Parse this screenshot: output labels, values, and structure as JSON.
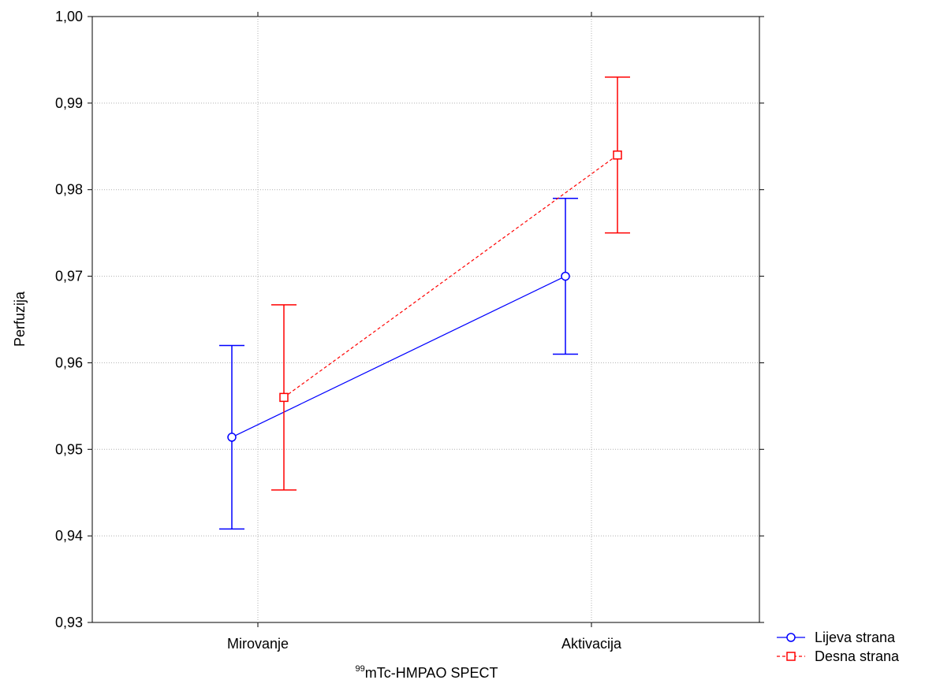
{
  "chart_data": {
    "type": "line",
    "xlabel_sup": "99",
    "xlabel_main": "mTc-HMPAO SPECT",
    "ylabel": "Perfuzija",
    "categories": [
      "Mirovanje",
      "Aktivacija"
    ],
    "ylim": [
      0.93,
      1.0
    ],
    "yticks": [
      "0,93",
      "0,94",
      "0,95",
      "0,96",
      "0,97",
      "0,98",
      "0,99",
      "1,00"
    ],
    "grid": true,
    "legend_position": "bottom-right, outside plot",
    "series": [
      {
        "name": "Lijeva strana",
        "color": "#0000ff",
        "line_style": "solid",
        "marker": "circle",
        "values": [
          0.9514,
          0.97
        ],
        "err_low": [
          0.9408,
          0.961
        ],
        "err_high": [
          0.962,
          0.979
        ]
      },
      {
        "name": "Desna strana",
        "color": "#ff0000",
        "line_style": "dashed",
        "marker": "square",
        "values": [
          0.956,
          0.984
        ],
        "err_low": [
          0.9453,
          0.975
        ],
        "err_high": [
          0.9667,
          0.993
        ]
      }
    ]
  }
}
